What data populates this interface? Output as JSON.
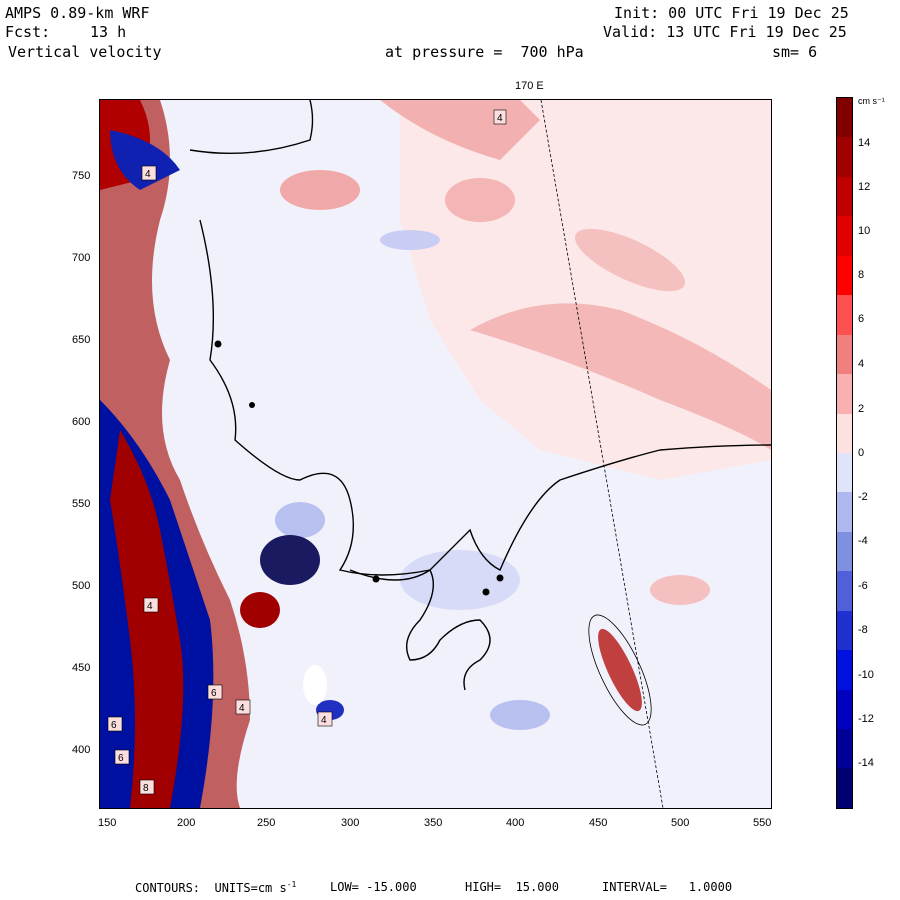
{
  "header": {
    "model": "AMPS 0.89-km WRF",
    "fcst_label": "Fcst:",
    "fcst_value": "13 h",
    "field": "Vertical velocity",
    "init": "Init: 00 UTC Fri 19 Dec 25",
    "valid": "Valid: 13 UTC Fri 19 Dec 25",
    "pressure": "at pressure =  700 hPa",
    "smoothing": "sm= 6"
  },
  "map": {
    "meridian_label": "170 E",
    "x_ticks": [
      "150",
      "200",
      "250",
      "300",
      "350",
      "400",
      "450",
      "500",
      "550"
    ],
    "y_ticks": [
      "750",
      "700",
      "650",
      "600",
      "550",
      "500",
      "450",
      "400"
    ],
    "box_labels": [
      "4",
      "4",
      "6",
      "4",
      "6",
      "4",
      "4",
      "6",
      "8"
    ],
    "colors": {
      "strong_up": "#a00000",
      "up": "#f0b0b0",
      "weak_up": "#fbe3e3",
      "weak_down": "#e3e6fa",
      "down": "#8090e0",
      "strong_down": "#0010a0"
    }
  },
  "colorbar": {
    "units": "cm s⁻¹",
    "labels": [
      "14",
      "12",
      "10",
      "8",
      "6",
      "4",
      "2",
      "0",
      "-2",
      "-4",
      "-6",
      "-8",
      "-10",
      "-12",
      "-14"
    ],
    "colors": [
      "#800000",
      "#a00000",
      "#c00000",
      "#e00000",
      "#ff0000",
      "#ff5050",
      "#f08080",
      "#f8b0b0",
      "#fde0e0",
      "#e0e4fa",
      "#b0b8f0",
      "#8090e0",
      "#5060d8",
      "#2030d0",
      "#0010e0",
      "#0000c0",
      "#000098",
      "#000070"
    ]
  },
  "footer": {
    "contours": "CONTOURS:  UNITS=cm s",
    "units_exp": "-1",
    "low": "LOW= -15.000",
    "high": "HIGH=  15.000",
    "interval": "INTERVAL=   1.0000"
  }
}
